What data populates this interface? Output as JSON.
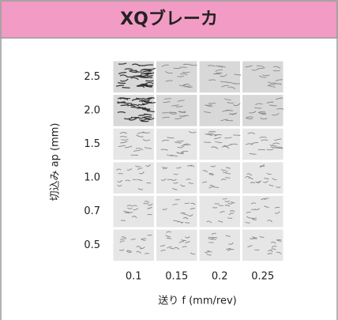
{
  "header": {
    "title": "XQブレーカ"
  },
  "y_axis": {
    "title": "切込み ap (mm)",
    "labels": [
      "2.5",
      "2.0",
      "1.5",
      "1.0",
      "0.7",
      "0.5"
    ]
  },
  "x_axis": {
    "title": "送り f (mm/rev)",
    "labels": [
      "0.1",
      "0.15",
      "0.2",
      "0.25"
    ]
  }
}
